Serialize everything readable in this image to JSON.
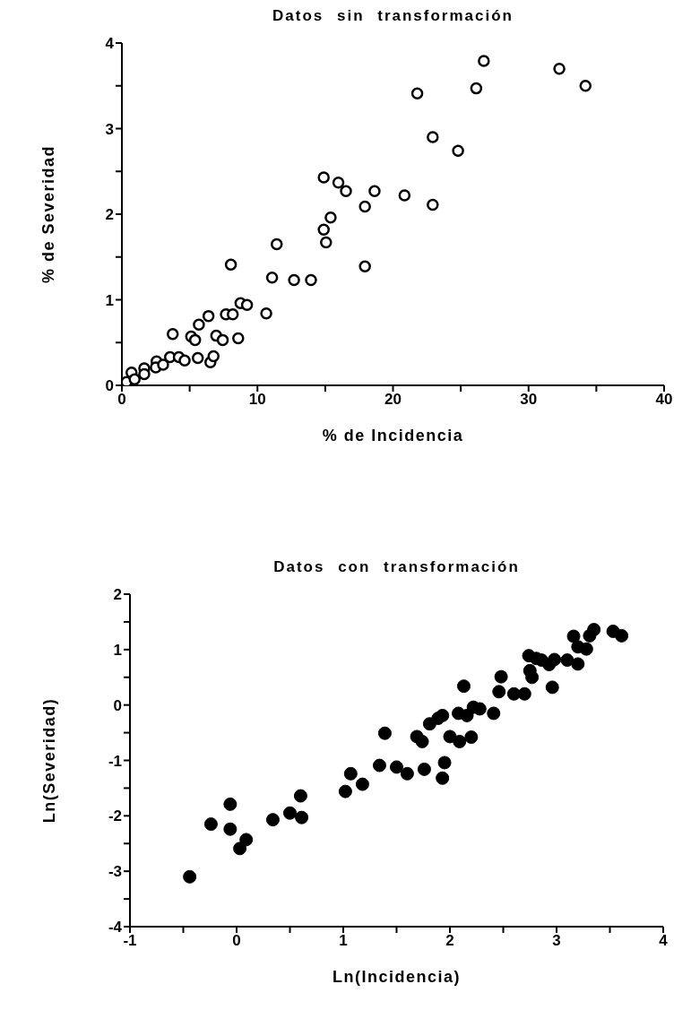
{
  "chart_data": [
    {
      "type": "scatter",
      "title": "Datos sin transformación",
      "xlabel": "% de Incidencia",
      "ylabel": "% de Severidad",
      "marker": "circle",
      "xlim": [
        0,
        40
      ],
      "xticks": [
        0,
        {
          "value": 5,
          "label": null
        },
        10,
        {
          "value": 15,
          "label": null
        },
        20,
        {
          "value": 25,
          "label": null
        },
        30,
        {
          "value": 35,
          "label": null
        },
        40
      ],
      "ylim": [
        0,
        4
      ],
      "yticks": [
        0,
        {
          "value": 0.5,
          "label": null
        },
        1,
        {
          "value": 1.5,
          "label": null
        },
        2,
        {
          "value": 2.5,
          "label": null
        },
        3,
        {
          "value": 3.5,
          "label": null
        },
        4
      ],
      "series": [
        {
          "color": "#000000",
          "x": [
            0.34,
            0.71,
            0.94,
            1.65,
            1.65,
            2.56,
            2.5,
            3.04,
            3.55,
            3.75,
            4.2,
            4.63,
            5.11,
            5.4,
            5.6,
            5.68,
            6.39,
            6.53,
            6.76,
            6.96,
            7.44,
            7.67,
            8.18,
            8.04,
            8.58,
            8.75,
            9.23,
            10.65,
            11.08,
            11.42,
            12.7,
            13.95,
            14.89,
            14.89,
            15.06,
            15.4,
            15.97,
            16.53,
            17.93,
            17.93,
            18.64,
            20.85,
            21.79,
            22.93,
            22.93,
            24.8,
            26.14,
            26.7,
            32.27,
            34.2
          ],
          "values": [
            0.04,
            0.15,
            0.07,
            0.2,
            0.13,
            0.28,
            0.21,
            0.24,
            0.33,
            0.6,
            0.33,
            0.29,
            0.57,
            0.53,
            0.32,
            0.71,
            0.81,
            0.27,
            0.34,
            0.58,
            0.53,
            0.83,
            0.83,
            1.41,
            0.55,
            0.96,
            0.94,
            0.84,
            1.26,
            1.65,
            1.23,
            1.23,
            2.43,
            1.82,
            1.67,
            1.96,
            2.37,
            2.27,
            2.09,
            1.39,
            2.27,
            2.22,
            3.41,
            2.9,
            2.11,
            2.74,
            3.47,
            3.79,
            3.7,
            3.5
          ]
        }
      ]
    },
    {
      "type": "scatter",
      "title": "Datos con transformación",
      "xlabel": "Ln(Incidencia)",
      "ylabel": "Ln(Severidad)",
      "marker": "circle",
      "xlim": [
        -1,
        4
      ],
      "xticks": [
        -1,
        {
          "value": -0.5,
          "label": null
        },
        0,
        {
          "value": 0.5,
          "label": null
        },
        1,
        {
          "value": 1.5,
          "label": null
        },
        2,
        {
          "value": 2.5,
          "label": null
        },
        3,
        {
          "value": 3.5,
          "label": null
        },
        4
      ],
      "ylim": [
        -4,
        2
      ],
      "yticks": [
        -4,
        {
          "value": -3.5,
          "label": null
        },
        -3,
        {
          "value": -2.5,
          "label": null
        },
        -2,
        {
          "value": -1.5,
          "label": null
        },
        -1,
        {
          "value": -0.5,
          "label": null
        },
        0,
        {
          "value": 0.5,
          "label": null
        },
        1,
        {
          "value": 1.5,
          "label": null
        },
        2
      ],
      "series": [
        {
          "color": "#000000",
          "x": [
            -0.44,
            -0.24,
            -0.06,
            -0.06,
            0.03,
            0.09,
            0.34,
            0.5,
            0.61,
            0.6,
            1.02,
            1.07,
            1.18,
            1.34,
            1.39,
            1.5,
            1.6,
            1.69,
            1.74,
            1.76,
            1.81,
            1.89,
            1.93,
            1.93,
            1.95,
            2.0,
            2.09,
            2.08,
            2.13,
            2.16,
            2.2,
            2.22,
            2.28,
            2.41,
            2.46,
            2.48,
            2.6,
            2.7,
            2.74,
            2.75,
            2.77,
            2.81,
            2.86,
            2.93,
            2.98,
            2.96,
            3.1,
            3.16,
            3.2,
            3.2,
            3.28,
            3.31,
            3.35,
            3.53,
            3.61
          ],
          "values": [
            -3.1,
            -2.15,
            -1.79,
            -2.24,
            -2.59,
            -2.43,
            -2.07,
            -1.95,
            -2.03,
            -1.64,
            -1.56,
            -1.24,
            -1.43,
            -1.09,
            -0.51,
            -1.12,
            -1.24,
            -0.57,
            -0.66,
            -1.16,
            -0.34,
            -0.24,
            -0.19,
            -1.32,
            -1.04,
            -0.57,
            -0.66,
            -0.15,
            0.34,
            -0.19,
            -0.58,
            -0.04,
            -0.07,
            -0.15,
            0.24,
            0.51,
            0.2,
            0.2,
            0.89,
            0.62,
            0.5,
            0.84,
            0.81,
            0.73,
            0.82,
            0.32,
            0.81,
            1.24,
            0.74,
            1.05,
            1.01,
            1.25,
            1.36,
            1.33,
            1.25
          ]
        }
      ]
    }
  ]
}
